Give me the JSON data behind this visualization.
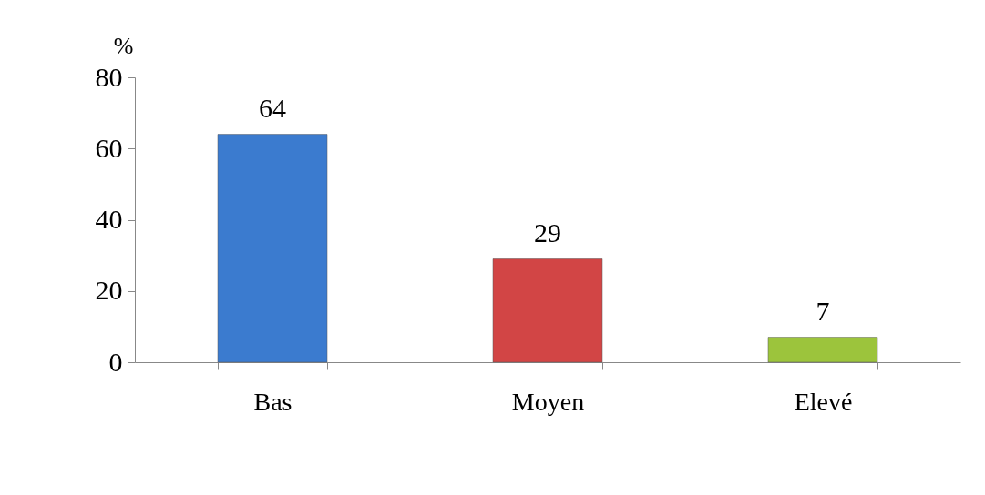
{
  "chart_data": {
    "type": "bar",
    "ylabel": "%",
    "categories": [
      "Bas",
      "Moyen",
      "Elevé"
    ],
    "values": [
      64,
      29,
      7
    ],
    "colors": [
      "#3b7bcf",
      "#d24545",
      "#9cc43c"
    ],
    "ylim": [
      0,
      80
    ],
    "yticks": [
      0,
      20,
      40,
      60,
      80
    ],
    "data_labels": true,
    "grid": false
  }
}
